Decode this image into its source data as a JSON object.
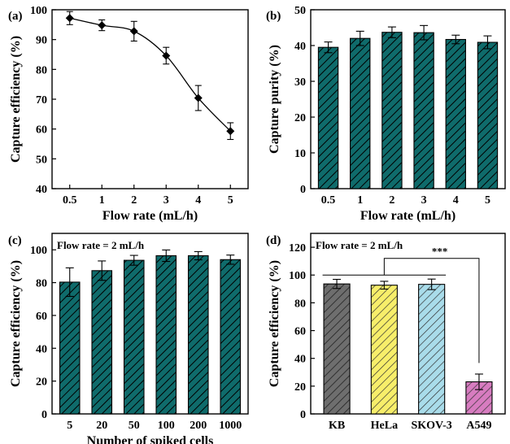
{
  "colors": {
    "teal": "#0f6b6b",
    "gray": "#6e6e6e",
    "yellow": "#f7ee6a",
    "lightblue": "#a9dcea",
    "pink": "#d77cc0"
  },
  "chart_data": [
    {
      "panel": "(a)",
      "type": "line",
      "x_categories": [
        "0.5",
        "1",
        "2",
        "3",
        "4",
        "5"
      ],
      "values": [
        97.2,
        94.8,
        92.8,
        84.6,
        70.4,
        59.3
      ],
      "errors": [
        2.2,
        1.8,
        3.3,
        2.8,
        4.2,
        2.8
      ],
      "xlabel": "Flow rate (mL/h)",
      "ylabel": "Capture efficiency (%)",
      "ylim": [
        40,
        100
      ],
      "yticks": [
        "40",
        "50",
        "60",
        "70",
        "80",
        "90",
        "100"
      ],
      "marker": "diamond"
    },
    {
      "panel": "(b)",
      "type": "bar",
      "categories": [
        "0.5",
        "1",
        "2",
        "3",
        "4",
        "5"
      ],
      "values": [
        39.5,
        42.0,
        43.7,
        43.6,
        41.7,
        40.9
      ],
      "errors": [
        1.5,
        2.0,
        1.5,
        2.0,
        1.2,
        1.8
      ],
      "xlabel": "Flow rate (mL/h)",
      "ylabel": "Capture purity (%)",
      "ylim": [
        0,
        50
      ],
      "yticks": [
        "0",
        "10",
        "20",
        "30",
        "40",
        "50"
      ],
      "fill": "hatched teal"
    },
    {
      "panel": "(c)",
      "type": "bar",
      "annotation": "Flow rate = 2 mL/h",
      "categories": [
        "5",
        "20",
        "50",
        "100",
        "200",
        "1000"
      ],
      "values": [
        80.3,
        87.3,
        93.6,
        96.4,
        96.4,
        94.0
      ],
      "errors": [
        8.7,
        5.9,
        3.0,
        3.5,
        2.5,
        2.8
      ],
      "xlabel": "Number of spiked cells",
      "ylabel": "Capture efficiency (%)",
      "ylim": [
        0,
        110
      ],
      "yticks": [
        "0",
        "20",
        "40",
        "60",
        "80",
        "100"
      ],
      "fill": "hatched teal"
    },
    {
      "panel": "(d)",
      "type": "bar",
      "annotation": "Flow rate = 2 mL/h",
      "significance": "***",
      "categories": [
        "KB",
        "HeLa",
        "SKOV-3",
        "A549"
      ],
      "values": [
        93.6,
        92.7,
        93.3,
        23.1
      ],
      "errors": [
        3.3,
        2.8,
        3.8,
        5.6
      ],
      "xlabel": "",
      "ylabel": "Capture efficiency (%)",
      "ylim": [
        0,
        130
      ],
      "yticks": [
        "0",
        "20",
        "40",
        "60",
        "80",
        "100",
        "120"
      ],
      "bar_colors": [
        "gray",
        "yellow",
        "lightblue",
        "pink"
      ]
    }
  ]
}
